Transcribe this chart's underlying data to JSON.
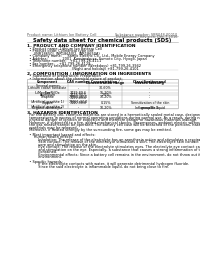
{
  "title": "Safety data sheet for chemical products (SDS)",
  "header_left": "Product name: Lithium Ion Battery Cell",
  "header_right_line1": "Substance number: SBR048-00010",
  "header_right_line2": "Established / Revision: Dec.7.2016",
  "section1_title": "1. PRODUCT AND COMPANY IDENTIFICATION",
  "section1_lines": [
    "  • Product name: Lithium Ion Battery Cell",
    "  • Product code: Cylindrical type cell",
    "      (INR18650J, INR18650J2, INR18650A)",
    "  • Company name:     Sanyo Electric Co., Ltd., Mobile Energy Company",
    "  • Address:             2001  Kamimakusa, Sumoto City, Hyogo, Japan",
    "  • Telephone number:   +81-799-26-4111",
    "  • Fax number:    +81-799-26-4129",
    "  • Emergency telephone number (Weekdays) +81-799-26-3942",
    "                                        (Night and holiday) +81-799-26-4101"
  ],
  "section2_title": "2. COMPOSITION / INFORMATION ON INGREDIENTS",
  "section2_intro": "  • Substance or preparation: Preparation",
  "section2_sub": "  • Information about the chemical nature of product:",
  "section3_title": "3. HAZARDS IDENTIFICATION",
  "section3_lines": [
    "  For the battery cell, chemical materials are stored in a hermetically sealed metal case, designed to withstand",
    "  temperatures in excess of normal operating conditions during normal use. As a result, during normal use, there is no",
    "  physical danger of ignition or explosion and therefore danger of hazardous materials leakage.",
    "  However, if subjected to a fire, added mechanical shocks, decomposes, ambient electric without any measure,",
    "  the gas release cannot be operated. The battery cell case will be breached of the portions, hazardous",
    "  materials may be released.",
    "  Moreover, if heated strongly by the surrounding fire, some gas may be emitted.",
    "",
    "  • Most important hazard and effects:",
    "      Human health effects:",
    "          Inhalation: The release of the electrolyte has an anesthesia action and stimulates a respiratory tract.",
    "          Skin contact: The release of the electrolyte stimulates a skin. The electrolyte skin contact causes a",
    "          sore and stimulation on the skin.",
    "          Eye contact: The release of the electrolyte stimulates eyes. The electrolyte eye contact causes a sore",
    "          and stimulation on the eye. Especially, a substance that causes a strong inflammation of the eye is",
    "          contained.",
    "          Environmental effects: Since a battery cell remains in the environment, do not throw out it into the",
    "          environment.",
    "",
    "  • Specific hazards:",
    "          If the electrolyte contacts with water, it will generate detrimental hydrogen fluoride.",
    "          Since the said electrolyte is inflammable liquid, do not bring close to fire."
  ],
  "bg_color": "#ffffff",
  "text_color": "#000000",
  "gray_color": "#555555",
  "table_border_color": "#999999"
}
